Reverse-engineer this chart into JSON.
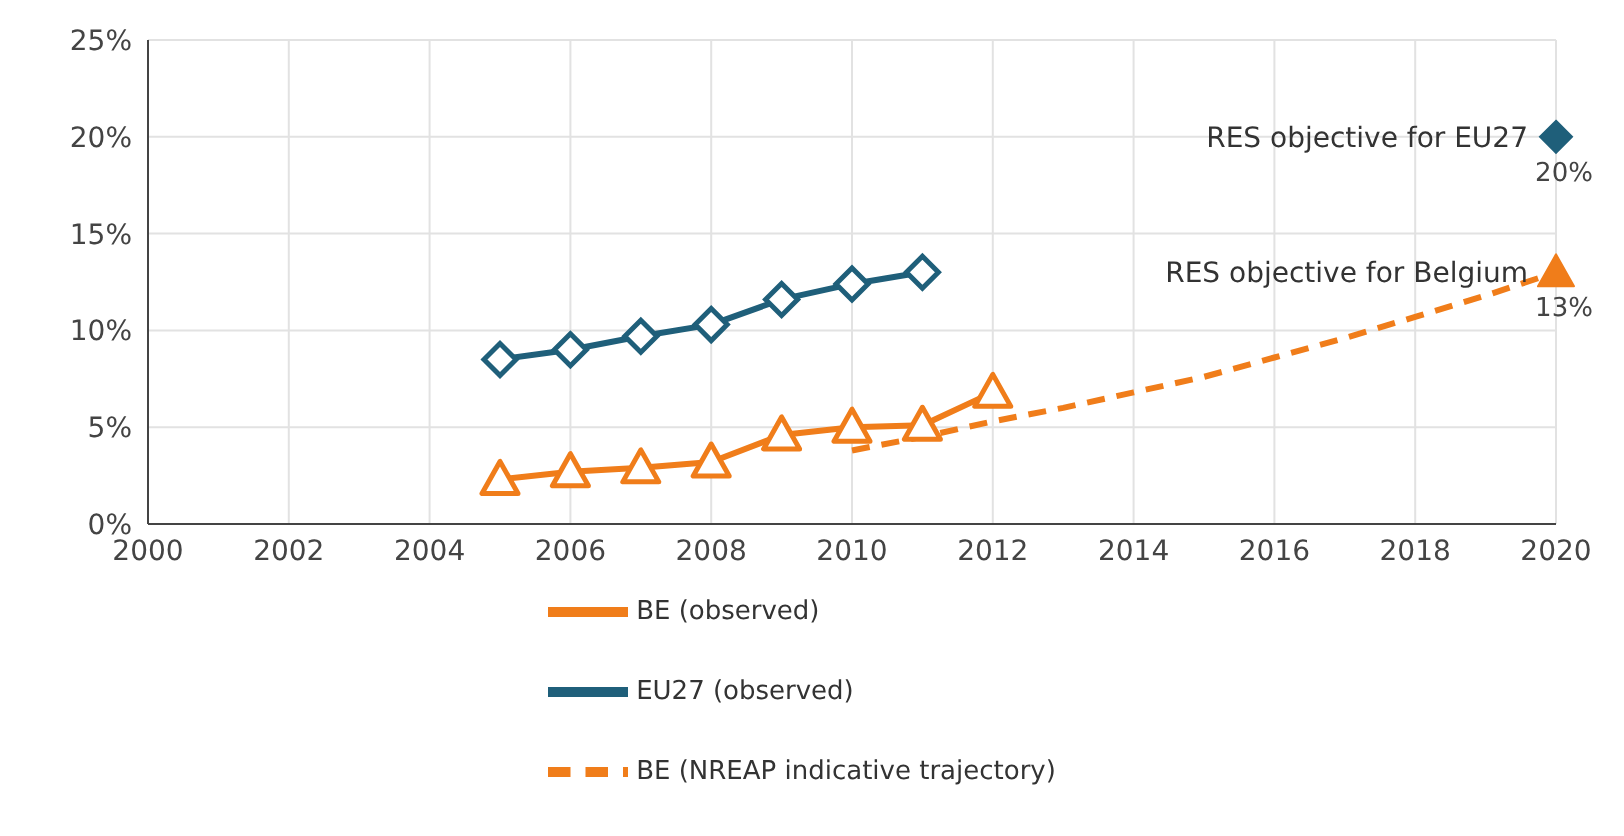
{
  "chart_data": {
    "type": "line",
    "xlim": [
      2000,
      2020
    ],
    "xticks": [
      2000,
      2002,
      2004,
      2006,
      2008,
      2010,
      2012,
      2014,
      2016,
      2018,
      2020
    ],
    "ylim": [
      0,
      25
    ],
    "yticks": [
      {
        "value": 0,
        "label": "0%"
      },
      {
        "value": 5,
        "label": "5%"
      },
      {
        "value": 10,
        "label": "10%"
      },
      {
        "value": 15,
        "label": "15%"
      },
      {
        "value": 20,
        "label": "20%"
      },
      {
        "value": 25,
        "label": "25%"
      }
    ],
    "grid": true,
    "legend": "bottom",
    "series": [
      {
        "name": "BE (observed)",
        "color": "#f07d1a",
        "marker": "triangle",
        "line_style": "solid",
        "x": [
          2005,
          2006,
          2007,
          2008,
          2009,
          2010,
          2011,
          2012
        ],
        "values": [
          2.3,
          2.7,
          2.9,
          3.2,
          4.6,
          5.0,
          5.1,
          6.8
        ]
      },
      {
        "name": "EU27 (observed)",
        "color": "#1f5f7a",
        "marker": "diamond",
        "line_style": "solid",
        "x": [
          2005,
          2006,
          2007,
          2008,
          2009,
          2010,
          2011
        ],
        "values": [
          8.5,
          9.0,
          9.7,
          10.3,
          11.6,
          12.4,
          13.0
        ]
      },
      {
        "name": "BE (NREAP indicative trajectory)",
        "color": "#f07d1a",
        "marker": "none",
        "line_style": "dashed",
        "x": [
          2010,
          2011,
          2012,
          2013,
          2014,
          2015,
          2016,
          2017,
          2018,
          2019,
          2020
        ],
        "values": [
          3.8,
          4.5,
          5.3,
          6.0,
          6.8,
          7.6,
          8.6,
          9.6,
          10.7,
          11.8,
          13.0
        ]
      },
      {
        "type": "scatter",
        "color": "#1f5f7a",
        "marker": "diamond",
        "x": [
          2020
        ],
        "values": [
          20
        ],
        "value_labels": [
          "20%"
        ]
      },
      {
        "type": "scatter",
        "color": "#f07d1a",
        "marker": "triangle",
        "x": [
          2020
        ],
        "values": [
          13
        ],
        "value_labels": [
          "13%"
        ]
      }
    ],
    "annotations": [
      {
        "text": "RES objective for EU27",
        "x": 2020,
        "y": 20
      },
      {
        "text": "RES objective for Belgium",
        "x": 2020,
        "y": 13
      }
    ]
  }
}
